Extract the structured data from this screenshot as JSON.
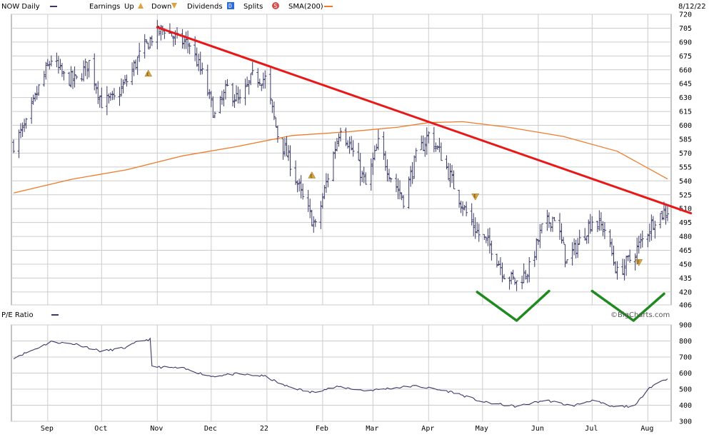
{
  "header": {
    "symbol_label": "NOW Daily",
    "earnings_label": "Earnings",
    "up_label": "Up",
    "down_label": "Down",
    "dividends_label": "Dividends",
    "dividends_marker": "D",
    "splits_label": "Splits",
    "splits_marker": "S",
    "sma_label": "SMA(200)",
    "date_label": "8/12/22"
  },
  "watermark": "©BigCharts.com",
  "colors": {
    "price_bars": "#3a3a6a",
    "sma": "#f07a2a",
    "trendline": "#e81818",
    "pattern_v": "#1f8a1f",
    "pe_line": "#3a3a6a",
    "grid": "#cccccc",
    "earnings_marker": "#d9a441",
    "dividend_marker": "#2f6bd8",
    "split_marker": "#d44c4c"
  },
  "chart_data": [
    {
      "type": "ohlc",
      "title": "NOW Daily",
      "ylim": [
        406,
        720
      ],
      "y_ticks": [
        720,
        705,
        690,
        675,
        660,
        645,
        630,
        615,
        600,
        585,
        570,
        555,
        540,
        525,
        510,
        495,
        480,
        465,
        450,
        435,
        420,
        406
      ],
      "x_tick_labels": [
        "Sep",
        "Oct",
        "Nov",
        "Dec",
        "22",
        "Feb",
        "Mar",
        "Apr",
        "May",
        "Jun",
        "Jul",
        "Aug"
      ],
      "grid": true,
      "price_path": [
        [
          "2021-08-13",
          580
        ],
        [
          "2021-08-20",
          600
        ],
        [
          "2021-08-27",
          640
        ],
        [
          "2021-09-03",
          672
        ],
        [
          "2021-09-10",
          652
        ],
        [
          "2021-09-17",
          648
        ],
        [
          "2021-09-24",
          668
        ],
        [
          "2021-10-01",
          625
        ],
        [
          "2021-10-08",
          628
        ],
        [
          "2021-10-15",
          648
        ],
        [
          "2021-10-22",
          675
        ],
        [
          "2021-10-29",
          695
        ],
        [
          "2021-11-05",
          705
        ],
        [
          "2021-11-12",
          692
        ],
        [
          "2021-11-19",
          688
        ],
        [
          "2021-11-26",
          655
        ],
        [
          "2021-12-03",
          610
        ],
        [
          "2021-12-10",
          640
        ],
        [
          "2021-12-17",
          625
        ],
        [
          "2021-12-24",
          652
        ],
        [
          "2021-12-31",
          650
        ],
        [
          "2022-01-07",
          590
        ],
        [
          "2022-01-14",
          560
        ],
        [
          "2022-01-21",
          520
        ],
        [
          "2022-01-28",
          490
        ],
        [
          "2022-02-04",
          545
        ],
        [
          "2022-02-11",
          600
        ],
        [
          "2022-02-18",
          570
        ],
        [
          "2022-02-25",
          535
        ],
        [
          "2022-03-04",
          580
        ],
        [
          "2022-03-11",
          545
        ],
        [
          "2022-03-18",
          520
        ],
        [
          "2022-03-25",
          565
        ],
        [
          "2022-04-01",
          590
        ],
        [
          "2022-04-08",
          568
        ],
        [
          "2022-04-15",
          535
        ],
        [
          "2022-04-22",
          505
        ],
        [
          "2022-04-29",
          482
        ],
        [
          "2022-05-06",
          468
        ],
        [
          "2022-05-13",
          440
        ],
        [
          "2022-05-20",
          430
        ],
        [
          "2022-05-27",
          445
        ],
        [
          "2022-06-03",
          488
        ],
        [
          "2022-06-10",
          502
        ],
        [
          "2022-06-17",
          452
        ],
        [
          "2022-06-24",
          475
        ],
        [
          "2022-07-01",
          498
        ],
        [
          "2022-07-08",
          488
        ],
        [
          "2022-07-15",
          440
        ],
        [
          "2022-07-22",
          455
        ],
        [
          "2022-07-29",
          476
        ],
        [
          "2022-08-05",
          500
        ],
        [
          "2022-08-12",
          508
        ]
      ],
      "series": [
        {
          "name": "SMA(200)",
          "points": [
            [
              "2021-08-13",
              527
            ],
            [
              "2021-09-15",
              542
            ],
            [
              "2021-10-15",
              552
            ],
            [
              "2021-11-15",
              567
            ],
            [
              "2021-12-15",
              577
            ],
            [
              "2022-01-15",
              589
            ],
            [
              "2022-02-15",
              593
            ],
            [
              "2022-03-15",
              598
            ],
            [
              "2022-04-01",
              603
            ],
            [
              "2022-04-20",
              604
            ],
            [
              "2022-05-15",
              598
            ],
            [
              "2022-06-15",
              588
            ],
            [
              "2022-07-15",
              572
            ],
            [
              "2022-08-12",
              542
            ]
          ]
        }
      ],
      "earnings_markers": [
        {
          "date": "2021-10-27",
          "price": 656,
          "direction": "up",
          "label": "E"
        },
        {
          "date": "2022-01-26",
          "price": 546,
          "direction": "up",
          "label": "E"
        },
        {
          "date": "2022-04-27",
          "price": 523,
          "direction": "down",
          "label": "E"
        },
        {
          "date": "2022-07-27",
          "price": 452,
          "direction": "down",
          "label": "E"
        }
      ],
      "trendline": {
        "start": [
          "2021-11-01",
          706
        ],
        "end": [
          "2022-08-25",
          505
        ]
      },
      "pattern_lows": [
        [
          [
            "2022-04-28",
            420
          ],
          [
            "2022-05-20",
            406
          ],
          [
            "2022-06-07",
            421
          ]
        ],
        [
          [
            "2022-07-01",
            421
          ],
          [
            "2022-07-24",
            406
          ],
          [
            "2022-08-10",
            418
          ]
        ]
      ]
    },
    {
      "type": "line",
      "title": "P/E Ratio",
      "ylim": [
        300,
        900
      ],
      "y_ticks": [
        900,
        800,
        700,
        600,
        500,
        400,
        300
      ],
      "x_tick_labels": [
        "Sep",
        "Oct",
        "Nov",
        "Dec",
        "22",
        "Feb",
        "Mar",
        "Apr",
        "May",
        "Jun",
        "Jul",
        "Aug"
      ],
      "grid": true,
      "series": [
        {
          "name": "P/E Ratio",
          "points": [
            [
              "2021-08-13",
              695
            ],
            [
              "2021-08-24",
              745
            ],
            [
              "2021-09-03",
              795
            ],
            [
              "2021-09-17",
              780
            ],
            [
              "2021-10-01",
              735
            ],
            [
              "2021-10-15",
              760
            ],
            [
              "2021-10-22",
              800
            ],
            [
              "2021-10-28",
              810
            ],
            [
              "2021-10-29",
              640
            ],
            [
              "2021-11-15",
              630
            ],
            [
              "2021-12-01",
              580
            ],
            [
              "2021-12-15",
              595
            ],
            [
              "2021-12-31",
              580
            ],
            [
              "2022-01-10",
              525
            ],
            [
              "2022-01-25",
              480
            ],
            [
              "2022-02-10",
              515
            ],
            [
              "2022-02-25",
              490
            ],
            [
              "2022-03-10",
              505
            ],
            [
              "2022-03-25",
              520
            ],
            [
              "2022-04-15",
              480
            ],
            [
              "2022-05-01",
              420
            ],
            [
              "2022-05-20",
              392
            ],
            [
              "2022-06-05",
              432
            ],
            [
              "2022-06-20",
              395
            ],
            [
              "2022-07-01",
              432
            ],
            [
              "2022-07-12",
              390
            ],
            [
              "2022-07-25",
              395
            ],
            [
              "2022-08-01",
              505
            ],
            [
              "2022-08-10",
              560
            ],
            [
              "2022-08-12",
              560
            ]
          ]
        }
      ]
    }
  ]
}
